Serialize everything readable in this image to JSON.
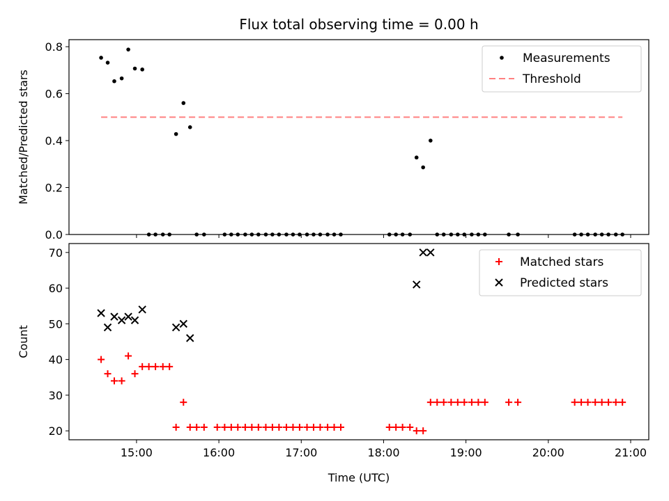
{
  "chart_data": [
    {
      "type": "scatter",
      "title": "Flux total observing time = 0.00 h",
      "xlabel": "",
      "ylabel": "Matched/Predicted stars",
      "x_unit": "hours (UTC)",
      "xlim": [
        14.18,
        21.22
      ],
      "ylim": [
        0.0,
        0.83
      ],
      "yticks": [
        0.0,
        0.2,
        0.4,
        0.6,
        0.8
      ],
      "ytick_labels": [
        "0.0",
        "0.2",
        "0.4",
        "0.6",
        "0.8"
      ],
      "xticks": [
        15,
        16,
        17,
        18,
        19,
        20,
        21
      ],
      "xtick_labels": [
        "",
        "",
        "",
        "",
        "",
        "",
        ""
      ],
      "legend_position": "top-right",
      "series": [
        {
          "name": "Measurements",
          "marker": "dot",
          "color": "#000000",
          "points": [
            [
              14.57,
              0.753
            ],
            [
              14.65,
              0.732
            ],
            [
              14.73,
              0.653
            ],
            [
              14.82,
              0.665
            ],
            [
              14.9,
              0.788
            ],
            [
              14.98,
              0.707
            ],
            [
              15.07,
              0.703
            ],
            [
              15.15,
              0.0
            ],
            [
              15.23,
              0.0
            ],
            [
              15.32,
              0.0
            ],
            [
              15.4,
              0.0
            ],
            [
              15.48,
              0.428
            ],
            [
              15.57,
              0.56
            ],
            [
              15.65,
              0.457
            ],
            [
              15.73,
              0.0
            ],
            [
              15.82,
              0.0
            ],
            [
              16.07,
              0.0
            ],
            [
              16.15,
              0.0
            ],
            [
              16.23,
              0.0
            ],
            [
              16.32,
              0.0
            ],
            [
              16.4,
              0.0
            ],
            [
              16.48,
              0.0
            ],
            [
              16.57,
              0.0
            ],
            [
              16.65,
              0.0
            ],
            [
              16.73,
              0.0
            ],
            [
              16.82,
              0.0
            ],
            [
              16.9,
              0.0
            ],
            [
              16.98,
              0.0
            ],
            [
              17.07,
              0.0
            ],
            [
              17.15,
              0.0
            ],
            [
              17.23,
              0.0
            ],
            [
              17.32,
              0.0
            ],
            [
              17.4,
              0.0
            ],
            [
              17.48,
              0.0
            ],
            [
              18.07,
              0.0
            ],
            [
              18.15,
              0.0
            ],
            [
              18.23,
              0.0
            ],
            [
              18.32,
              0.0
            ],
            [
              18.4,
              0.328
            ],
            [
              18.48,
              0.286
            ],
            [
              18.57,
              0.4
            ],
            [
              18.65,
              0.0
            ],
            [
              18.73,
              0.0
            ],
            [
              18.82,
              0.0
            ],
            [
              18.9,
              0.0
            ],
            [
              18.98,
              0.0
            ],
            [
              19.07,
              0.0
            ],
            [
              19.15,
              0.0
            ],
            [
              19.23,
              0.0
            ],
            [
              19.52,
              0.0
            ],
            [
              19.63,
              0.0
            ],
            [
              20.32,
              0.0
            ],
            [
              20.4,
              0.0
            ],
            [
              20.48,
              0.0
            ],
            [
              20.57,
              0.0
            ],
            [
              20.65,
              0.0
            ],
            [
              20.73,
              0.0
            ],
            [
              20.82,
              0.0
            ],
            [
              20.9,
              0.0
            ]
          ]
        },
        {
          "name": "Threshold",
          "marker": "dashed-line",
          "color": "#ff8080",
          "points": [
            [
              14.57,
              0.5
            ],
            [
              20.9,
              0.5
            ]
          ]
        }
      ]
    },
    {
      "type": "scatter",
      "title": "",
      "xlabel": "Time (UTC)",
      "ylabel": "Count",
      "x_unit": "hours (UTC)",
      "xlim": [
        14.18,
        21.22
      ],
      "ylim": [
        17.5,
        72.5
      ],
      "yticks": [
        20,
        30,
        40,
        50,
        60,
        70
      ],
      "ytick_labels": [
        "20",
        "30",
        "40",
        "50",
        "60",
        "70"
      ],
      "xticks": [
        15,
        16,
        17,
        18,
        19,
        20,
        21
      ],
      "xtick_labels": [
        "15:00",
        "16:00",
        "17:00",
        "18:00",
        "19:00",
        "20:00",
        "21:00"
      ],
      "legend_position": "top-right",
      "series": [
        {
          "name": "Matched stars",
          "marker": "plus",
          "color": "#ff0000",
          "points": [
            [
              14.57,
              40
            ],
            [
              14.65,
              36
            ],
            [
              14.73,
              34
            ],
            [
              14.82,
              34
            ],
            [
              14.9,
              41
            ],
            [
              14.98,
              36
            ],
            [
              15.07,
              38
            ],
            [
              15.15,
              38
            ],
            [
              15.23,
              38
            ],
            [
              15.32,
              38
            ],
            [
              15.4,
              38
            ],
            [
              15.48,
              21
            ],
            [
              15.57,
              28
            ],
            [
              15.65,
              21
            ],
            [
              15.73,
              21
            ],
            [
              15.82,
              21
            ],
            [
              15.98,
              21
            ],
            [
              16.07,
              21
            ],
            [
              16.15,
              21
            ],
            [
              16.23,
              21
            ],
            [
              16.32,
              21
            ],
            [
              16.4,
              21
            ],
            [
              16.48,
              21
            ],
            [
              16.57,
              21
            ],
            [
              16.65,
              21
            ],
            [
              16.73,
              21
            ],
            [
              16.82,
              21
            ],
            [
              16.9,
              21
            ],
            [
              16.98,
              21
            ],
            [
              17.07,
              21
            ],
            [
              17.15,
              21
            ],
            [
              17.23,
              21
            ],
            [
              17.32,
              21
            ],
            [
              17.4,
              21
            ],
            [
              17.48,
              21
            ],
            [
              18.07,
              21
            ],
            [
              18.15,
              21
            ],
            [
              18.23,
              21
            ],
            [
              18.32,
              21
            ],
            [
              18.4,
              20
            ],
            [
              18.48,
              20
            ],
            [
              18.57,
              28
            ],
            [
              18.65,
              28
            ],
            [
              18.73,
              28
            ],
            [
              18.82,
              28
            ],
            [
              18.9,
              28
            ],
            [
              18.98,
              28
            ],
            [
              19.07,
              28
            ],
            [
              19.15,
              28
            ],
            [
              19.23,
              28
            ],
            [
              19.52,
              28
            ],
            [
              19.63,
              28
            ],
            [
              20.32,
              28
            ],
            [
              20.4,
              28
            ],
            [
              20.48,
              28
            ],
            [
              20.57,
              28
            ],
            [
              20.65,
              28
            ],
            [
              20.73,
              28
            ],
            [
              20.82,
              28
            ],
            [
              20.9,
              28
            ]
          ]
        },
        {
          "name": "Predicted stars",
          "marker": "x",
          "color": "#000000",
          "points": [
            [
              14.57,
              53
            ],
            [
              14.65,
              49
            ],
            [
              14.73,
              52
            ],
            [
              14.82,
              51
            ],
            [
              14.9,
              52
            ],
            [
              14.98,
              51
            ],
            [
              15.07,
              54
            ],
            [
              15.48,
              49
            ],
            [
              15.57,
              50
            ],
            [
              15.65,
              46
            ],
            [
              18.4,
              61
            ],
            [
              18.48,
              70
            ],
            [
              18.57,
              70
            ]
          ]
        }
      ]
    }
  ]
}
